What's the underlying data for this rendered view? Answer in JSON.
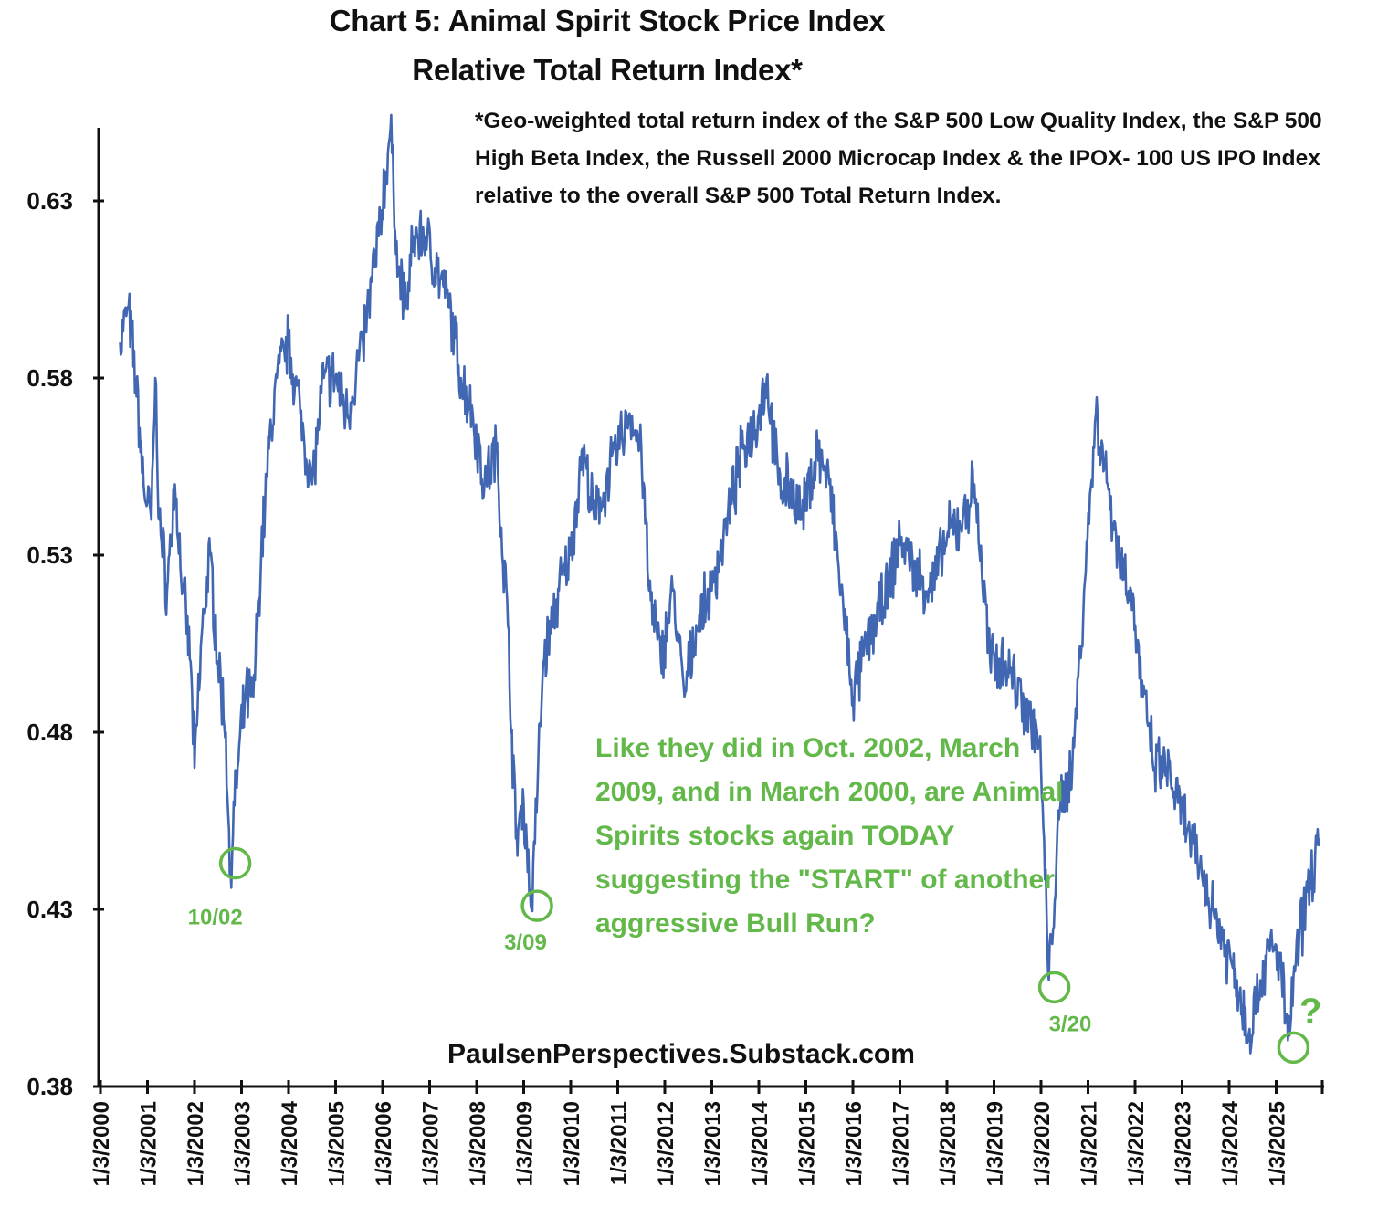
{
  "chart_data": {
    "type": "line",
    "title": "Chart 5: Animal Spirit Stock Price Index",
    "subtitle": "Relative Total Return Index*",
    "footnote": "*Geo-weighted total return index of the S&P 500 Low Quality Index, the S&P 500 High Beta Index, the Russell 2000 Microcap Index & the IPOX- 100 US IPO Index relative to the overall S&P 500 Total Return Index.",
    "xlabel": "",
    "ylabel": "",
    "ylim": [
      0.38,
      0.65
    ],
    "xlim": [
      "1/3/2000",
      "1/1/2026"
    ],
    "y_ticks": [
      "0.63",
      "0.58",
      "0.53",
      "0.48",
      "0.43",
      "0.38"
    ],
    "x_ticks": [
      "1/3/2000",
      "1/3/2001",
      "1/3/2002",
      "1/3/2003",
      "1/3/2004",
      "1/3/2005",
      "1/3/2006",
      "1/3/2007",
      "1/3/2008",
      "1/3/2009",
      "1/3/2010",
      "1/3/2011",
      "1/3/2012",
      "1/3/2013",
      "1/3/2014",
      "1/3/2015",
      "1/3/2016",
      "1/3/2017",
      "1/3/2018",
      "1/3/2019",
      "1/3/2020",
      "1/3/2021",
      "1/3/2022",
      "1/3/2023",
      "1/3/2024",
      "1/3/2025"
    ],
    "grid": false,
    "series": [
      {
        "color": "#4267b2",
        "points": [
          [
            "2000-06",
            0.59
          ],
          [
            "2000-08",
            0.6
          ],
          [
            "2000-10",
            0.58
          ],
          [
            "2000-12",
            0.55
          ],
          [
            "2001-02",
            0.54
          ],
          [
            "2001-03",
            0.58
          ],
          [
            "2001-04",
            0.54
          ],
          [
            "2001-06",
            0.52
          ],
          [
            "2001-08",
            0.55
          ],
          [
            "2001-10",
            0.52
          ],
          [
            "2001-12",
            0.5
          ],
          [
            "2002-01",
            0.47
          ],
          [
            "2002-03",
            0.51
          ],
          [
            "2002-05",
            0.53
          ],
          [
            "2002-07",
            0.5
          ],
          [
            "2002-09",
            0.48
          ],
          [
            "2002-10",
            0.44
          ],
          [
            "2002-12",
            0.47
          ],
          [
            "2003-02",
            0.49
          ],
          [
            "2003-04",
            0.49
          ],
          [
            "2003-06",
            0.53
          ],
          [
            "2003-08",
            0.56
          ],
          [
            "2003-10",
            0.58
          ],
          [
            "2004-01",
            0.59
          ],
          [
            "2004-04",
            0.57
          ],
          [
            "2004-07",
            0.55
          ],
          [
            "2004-10",
            0.58
          ],
          [
            "2005-01",
            0.58
          ],
          [
            "2005-04",
            0.57
          ],
          [
            "2005-08",
            0.59
          ],
          [
            "2005-12",
            0.62
          ],
          [
            "2006-03",
            0.65
          ],
          [
            "2006-05",
            0.61
          ],
          [
            "2006-07",
            0.6
          ],
          [
            "2006-09",
            0.62
          ],
          [
            "2006-12",
            0.62
          ],
          [
            "2007-03",
            0.61
          ],
          [
            "2007-06",
            0.6
          ],
          [
            "2007-09",
            0.58
          ],
          [
            "2007-12",
            0.57
          ],
          [
            "2008-03",
            0.55
          ],
          [
            "2008-06",
            0.56
          ],
          [
            "2008-09",
            0.51
          ],
          [
            "2008-11",
            0.45
          ],
          [
            "2009-01",
            0.46
          ],
          [
            "2009-03",
            0.43
          ],
          [
            "2009-06",
            0.5
          ],
          [
            "2009-10",
            0.52
          ],
          [
            "2010-01",
            0.53
          ],
          [
            "2010-04",
            0.56
          ],
          [
            "2010-07",
            0.54
          ],
          [
            "2010-10",
            0.55
          ],
          [
            "2011-01",
            0.56
          ],
          [
            "2011-04",
            0.57
          ],
          [
            "2011-07",
            0.56
          ],
          [
            "2011-09",
            0.52
          ],
          [
            "2011-12",
            0.5
          ],
          [
            "2012-03",
            0.52
          ],
          [
            "2012-06",
            0.49
          ],
          [
            "2012-09",
            0.51
          ],
          [
            "2013-01",
            0.52
          ],
          [
            "2013-05",
            0.54
          ],
          [
            "2013-09",
            0.56
          ],
          [
            "2014-01",
            0.57
          ],
          [
            "2014-03",
            0.58
          ],
          [
            "2014-06",
            0.55
          ],
          [
            "2014-09",
            0.55
          ],
          [
            "2014-12",
            0.54
          ],
          [
            "2015-04",
            0.56
          ],
          [
            "2015-07",
            0.55
          ],
          [
            "2015-10",
            0.52
          ],
          [
            "2016-01",
            0.49
          ],
          [
            "2016-06",
            0.51
          ],
          [
            "2016-10",
            0.52
          ],
          [
            "2017-01",
            0.535
          ],
          [
            "2017-05",
            0.525
          ],
          [
            "2017-09",
            0.52
          ],
          [
            "2018-01",
            0.535
          ],
          [
            "2018-05",
            0.54
          ],
          [
            "2018-08",
            0.55
          ],
          [
            "2018-12",
            0.5
          ],
          [
            "2019-04",
            0.5
          ],
          [
            "2019-08",
            0.49
          ],
          [
            "2019-12",
            0.48
          ],
          [
            "2020-01",
            0.47
          ],
          [
            "2020-03",
            0.41
          ],
          [
            "2020-06",
            0.46
          ],
          [
            "2020-09",
            0.47
          ],
          [
            "2020-12",
            0.52
          ],
          [
            "2021-03",
            0.57
          ],
          [
            "2021-06",
            0.55
          ],
          [
            "2021-09",
            0.53
          ],
          [
            "2021-12",
            0.52
          ],
          [
            "2022-03",
            0.49
          ],
          [
            "2022-06",
            0.47
          ],
          [
            "2022-09",
            0.47
          ],
          [
            "2022-12",
            0.46
          ],
          [
            "2023-03",
            0.45
          ],
          [
            "2023-06",
            0.44
          ],
          [
            "2023-09",
            0.43
          ],
          [
            "2023-12",
            0.42
          ],
          [
            "2024-03",
            0.41
          ],
          [
            "2024-06",
            0.395
          ],
          [
            "2024-09",
            0.41
          ],
          [
            "2024-12",
            0.42
          ],
          [
            "2025-02",
            0.415
          ],
          [
            "2025-04",
            0.393
          ],
          [
            "2025-06",
            0.415
          ],
          [
            "2025-09",
            0.435
          ],
          [
            "2025-12",
            0.45
          ]
        ]
      }
    ],
    "annotations": [
      {
        "label": "10/02",
        "date": "2002-10",
        "value": 0.443
      },
      {
        "label": "3/09",
        "date": "2009-03",
        "value": 0.431
      },
      {
        "label": "3/20",
        "date": "2020-03",
        "value": 0.408
      },
      {
        "label": "",
        "date": "2025-04",
        "value": 0.391
      }
    ],
    "callout": "Like they did in Oct. 2002, March 2009, and in March 2000, are Animal Spirits stocks again TODAY suggesting the \"START\" of another aggressive Bull Run?",
    "question_mark": "?",
    "source": "PaulsenPerspectives.Substack.com",
    "colors": {
      "line": "#4267b2",
      "annotation": "#63b84a",
      "axis": "#111111"
    }
  }
}
